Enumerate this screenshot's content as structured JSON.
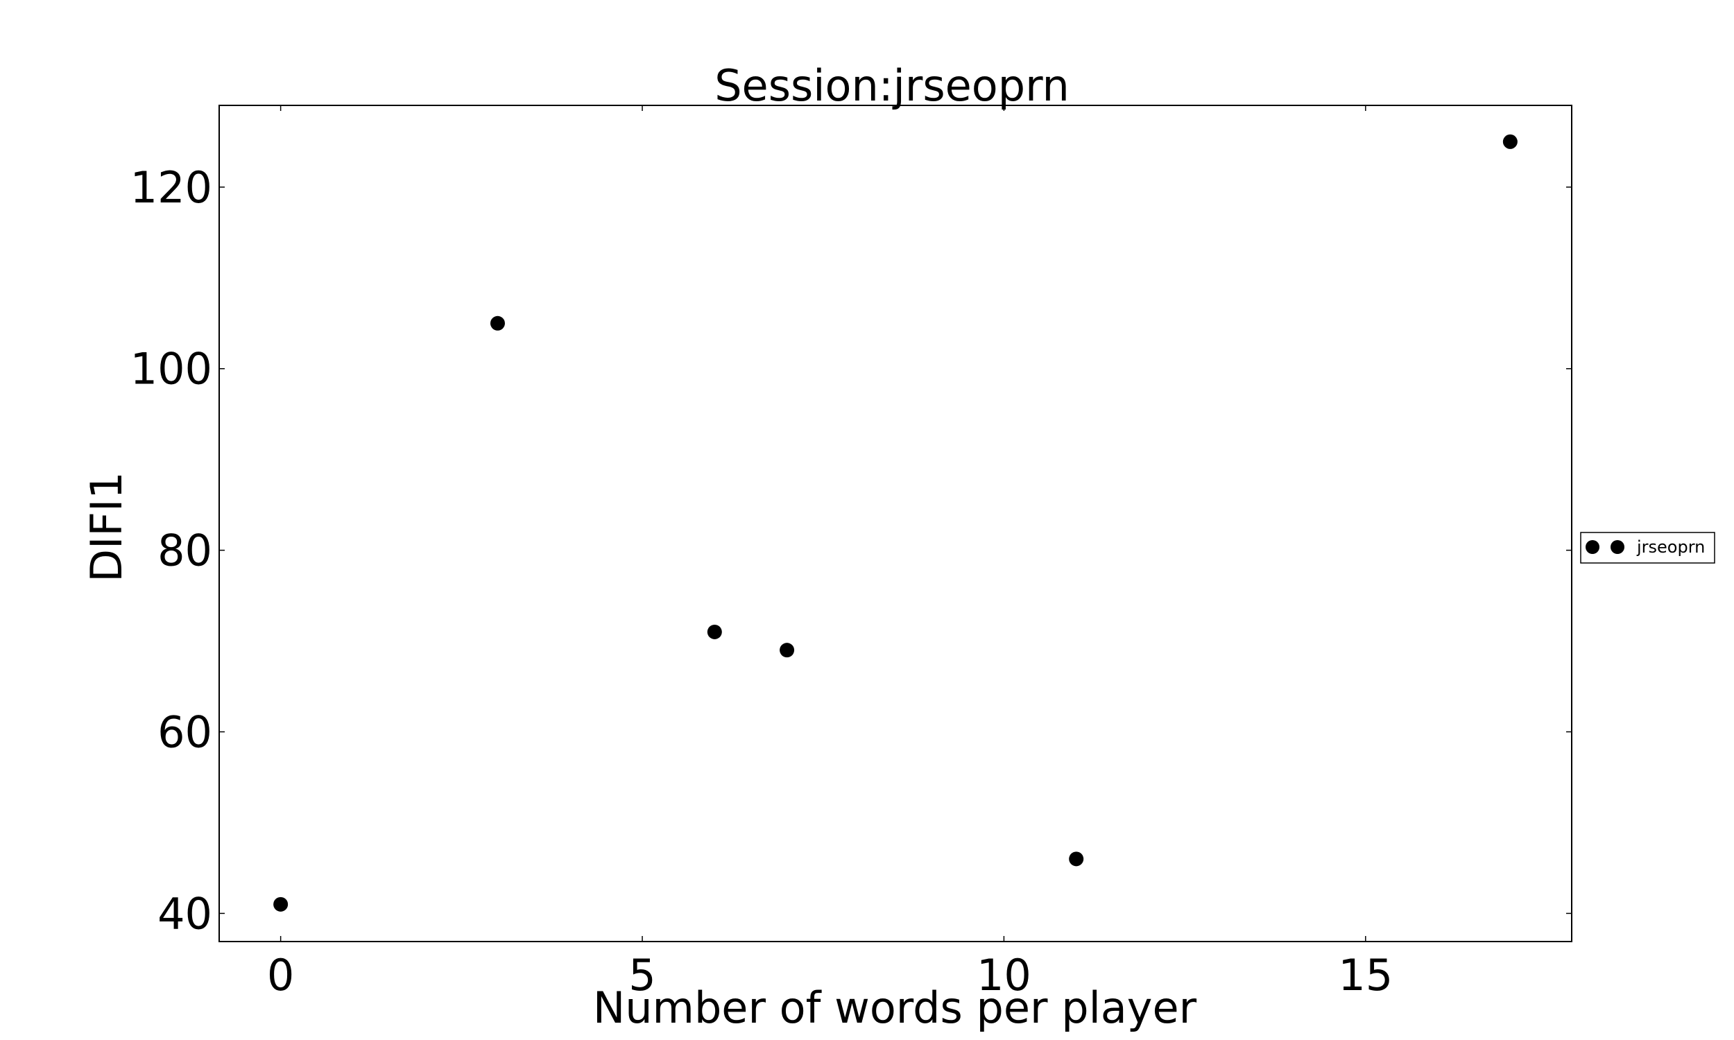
{
  "chart_data": {
    "type": "scatter",
    "title": "Session:jrseoprn",
    "xlabel": "Number of words per player",
    "ylabel": "DIFI1",
    "xlim": [
      -0.85,
      17.85
    ],
    "ylim": [
      36.9,
      129
    ],
    "xticks": [
      0,
      5,
      10,
      15
    ],
    "yticks": [
      40,
      60,
      80,
      100,
      120
    ],
    "grid": false,
    "legend_position": "right",
    "series": [
      {
        "name": "jrseoprn",
        "color": "#000000",
        "marker": "circle",
        "points": [
          {
            "x": 0,
            "y": 41
          },
          {
            "x": 3,
            "y": 105
          },
          {
            "x": 6,
            "y": 71
          },
          {
            "x": 7,
            "y": 69
          },
          {
            "x": 11,
            "y": 46
          },
          {
            "x": 17,
            "y": 125
          }
        ]
      }
    ]
  }
}
